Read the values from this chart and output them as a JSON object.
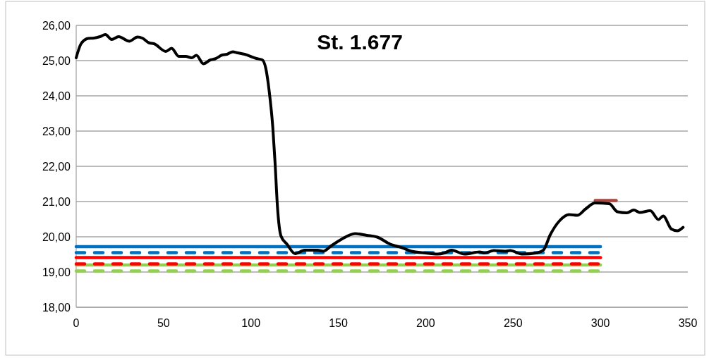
{
  "chart_data": {
    "type": "line",
    "title": "St. 1.677",
    "xlim": [
      0,
      350
    ],
    "xticks": [
      0,
      50,
      100,
      150,
      200,
      250,
      300,
      350
    ],
    "ylim": [
      18,
      26
    ],
    "yticks": [
      {
        "value": 18,
        "label": "18,00"
      },
      {
        "value": 19,
        "label": "19,00"
      },
      {
        "value": 20,
        "label": "20,00"
      },
      {
        "value": 21,
        "label": "21,00"
      },
      {
        "value": 22,
        "label": "22,00"
      },
      {
        "value": 23,
        "label": "23,00"
      },
      {
        "value": 24,
        "label": "24,00"
      },
      {
        "value": 25,
        "label": "25,00"
      },
      {
        "value": 26,
        "label": "26,00"
      }
    ],
    "grid": "y",
    "marker": "none",
    "series": [
      {
        "color": "#0070c0",
        "line_style": "solid",
        "x": [
          0,
          300
        ],
        "values": [
          19.72,
          19.72
        ]
      },
      {
        "color": "#0070c0",
        "line_style": "dashed",
        "x": [
          0,
          300
        ],
        "values": [
          19.55,
          19.55
        ]
      },
      {
        "color": "#ff0000",
        "line_style": "solid",
        "x": [
          0,
          300
        ],
        "values": [
          19.41,
          19.41
        ]
      },
      {
        "color": "#92d050",
        "line_style": "solid",
        "x": [
          0,
          300
        ],
        "values": [
          19.2,
          19.2
        ]
      },
      {
        "color": "#ff0000",
        "line_style": "dashed",
        "x": [
          0,
          300
        ],
        "values": [
          19.23,
          19.23
        ]
      },
      {
        "color": "#92d050",
        "line_style": "dashed",
        "x": [
          0,
          300
        ],
        "values": [
          19.03,
          19.03
        ]
      },
      {
        "color": "#a9463f",
        "line_style": "solid",
        "x": [
          297,
          309
        ],
        "values": [
          21.03,
          21.03
        ]
      },
      {
        "color": "#000000",
        "line_style": "solid",
        "x": [
          0,
          2.8,
          6.9,
          10.2,
          13.6,
          16.7,
          20.3,
          24.3,
          30.4,
          35.1,
          37.8,
          41.9,
          44.5,
          51.3,
          54.6,
          58.7,
          62.7,
          66.1,
          68.8,
          72.8,
          76.8,
          79.5,
          83.6,
          86.3,
          89.6,
          92.3,
          96.4,
          103.1,
          106.5,
          108.5,
          110.5,
          112.5,
          113.8,
          115.2,
          117.2,
          120.6,
          125.3,
          130.7,
          138.1,
          141.4,
          146.1,
          151.5,
          159.6,
          166.3,
          172.3,
          179.7,
          186.5,
          191.8,
          199.9,
          206.7,
          210.7,
          214.8,
          222.2,
          230.9,
          233.6,
          239,
          245.7,
          248.3,
          255.1,
          263.2,
          267.3,
          271.3,
          276.7,
          282.1,
          286.8,
          291.5,
          296.9,
          305,
          309.7,
          315.1,
          319.1,
          322.5,
          328.5,
          333.2,
          335.9,
          340.6,
          344,
          347.3
        ],
        "values": [
          25.08,
          25.48,
          25.63,
          25.64,
          25.68,
          25.74,
          25.6,
          25.68,
          25.55,
          25.67,
          25.64,
          25.5,
          25.48,
          25.26,
          25.35,
          25.12,
          25.12,
          25.08,
          25.15,
          24.91,
          25.02,
          25.05,
          25.16,
          25.18,
          25.25,
          25.22,
          25.18,
          25.06,
          25.02,
          24.78,
          24.11,
          23.11,
          22.1,
          20.83,
          20.02,
          19.79,
          19.52,
          19.62,
          19.62,
          19.59,
          19.75,
          19.92,
          20.09,
          20.04,
          19.99,
          19.79,
          19.69,
          19.59,
          19.54,
          19.51,
          19.54,
          19.62,
          19.51,
          19.57,
          19.54,
          19.61,
          19.59,
          19.61,
          19.51,
          19.54,
          19.62,
          20.06,
          20.46,
          20.63,
          20.61,
          20.79,
          20.96,
          20.94,
          20.71,
          20.68,
          20.76,
          20.69,
          20.74,
          20.49,
          20.59,
          20.22,
          20.17,
          20.27
        ]
      }
    ]
  }
}
